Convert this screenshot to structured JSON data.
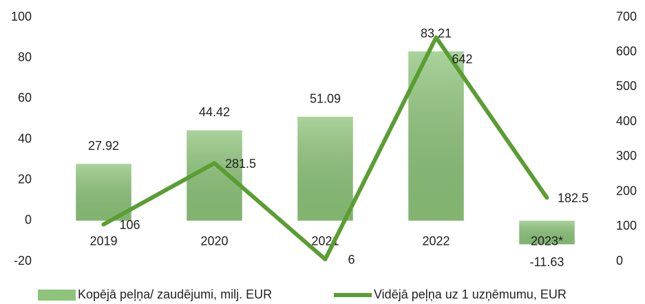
{
  "chart_data": {
    "type": "bar",
    "categories": [
      "2019",
      "2020",
      "2021",
      "2022",
      "2023*"
    ],
    "series": [
      {
        "name": "Kopējā peļņa/ zaudējumi, milj. EUR",
        "type": "bar",
        "color": "#8dc47a",
        "values": [
          27.92,
          44.42,
          51.09,
          83.21,
          -11.63
        ]
      },
      {
        "name": "Vidējā peļņa uz 1 uzņēmumu, EUR",
        "type": "line",
        "axis": "y2",
        "color": "#5a9e32",
        "values": [
          106,
          281.5,
          6,
          642,
          182.5
        ]
      }
    ],
    "ylim": [
      -20,
      100
    ],
    "yticks": [
      -20,
      0,
      20,
      40,
      60,
      80,
      100
    ],
    "y2lim": [
      0,
      700
    ],
    "y2ticks": [
      0,
      100,
      200,
      300,
      400,
      500,
      600,
      700
    ],
    "grid": false,
    "legend": "bottom"
  }
}
